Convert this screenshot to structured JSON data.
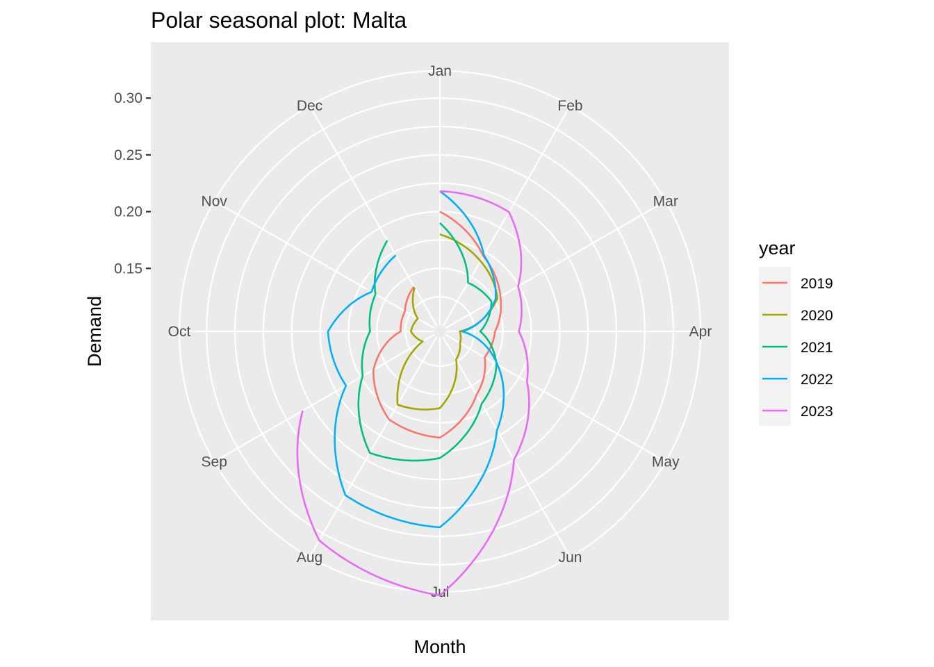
{
  "chart_data": {
    "type": "line",
    "coordinate_system": "polar",
    "title": "Polar seasonal plot: Malta",
    "xlabel": "Month",
    "ylabel": "Demand",
    "categories": [
      "Jan",
      "Feb",
      "Mar",
      "Apr",
      "May",
      "Jun",
      "Jul",
      "Aug",
      "Sep",
      "Oct",
      "Nov",
      "Dec"
    ],
    "y_ticks": [
      0.15,
      0.2,
      0.25,
      0.3
    ],
    "y_tick_labels": [
      "0.15",
      "0.20",
      "0.25",
      "0.30"
    ],
    "ylim": [
      0.1,
      0.324
    ],
    "grid": true,
    "legend_title": "year",
    "legend_position": "right",
    "series": [
      {
        "name": "2019",
        "color": "#F8766D",
        "values": [
          0.2,
          0.171,
          0.156,
          0.143,
          0.14,
          0.159,
          0.188,
          0.184,
          0.162,
          0.129,
          0.13,
          0.14
        ]
      },
      {
        "name": "2020",
        "color": "#A3A500",
        "values": [
          0.18,
          0.166,
          0.153,
          0.112,
          0.115,
          0.123,
          0.162,
          0.169,
          0.112,
          0.12,
          0.117,
          0.139
        ]
      },
      {
        "name": "2021",
        "color": "#00BF7D",
        "values": [
          0.19,
          0.144,
          0.147,
          0.13,
          0.152,
          0.168,
          0.206,
          0.218,
          0.173,
          0.156,
          0.16,
          0.187
        ]
      },
      {
        "name": "2022",
        "color": "#00B0F6",
        "values": [
          0.218,
          0.172,
          0.151,
          0.114,
          0.153,
          0.195,
          0.267,
          0.261,
          0.19,
          0.193,
          0.164,
          0.172
        ]
      },
      {
        "name": "2023",
        "color": "#E76BF3",
        "values": [
          0.218,
          0.216,
          0.174,
          0.164,
          0.183,
          0.225,
          0.327,
          0.307,
          0.234,
          null,
          null,
          null
        ]
      }
    ]
  }
}
